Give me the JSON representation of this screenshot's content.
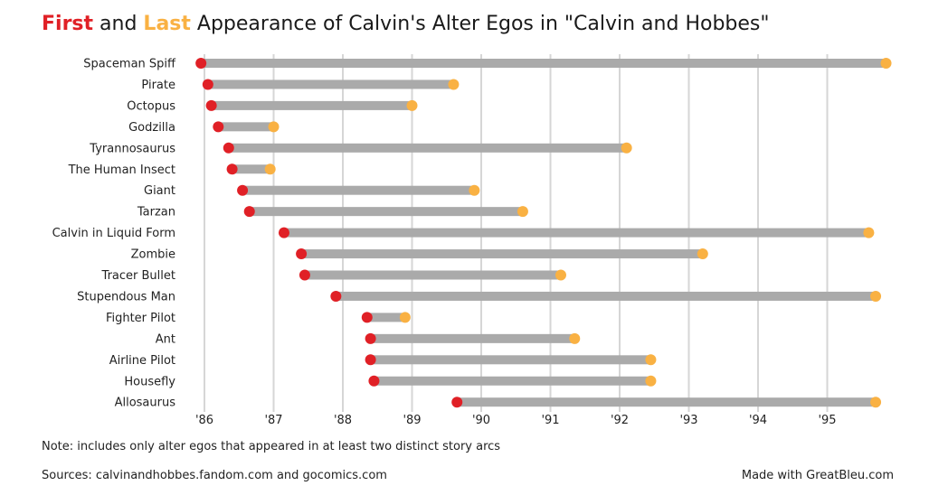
{
  "title": {
    "first_word": "First",
    "and_word": "and",
    "last_word": "Last",
    "rest": "Appearance of Calvin's Alter Egos in \"Calvin and Hobbes\""
  },
  "colors": {
    "first": "#e02026",
    "last": "#f9b143",
    "bar": "#aaaaaa",
    "grid": "#d6d6d6"
  },
  "chart_data": {
    "type": "range",
    "title": "First and Last Appearance of Calvin's Alter Egos in \"Calvin and Hobbes\"",
    "xlim": [
      1985.85,
      1995.85
    ],
    "grid": true,
    "x_ticks": [
      {
        "value": 1986,
        "label": "'86"
      },
      {
        "value": 1987,
        "label": "'87"
      },
      {
        "value": 1988,
        "label": "'88"
      },
      {
        "value": 1989,
        "label": "'89"
      },
      {
        "value": 1990,
        "label": "'90"
      },
      {
        "value": 1991,
        "label": "'91"
      },
      {
        "value": 1992,
        "label": "'92"
      },
      {
        "value": 1993,
        "label": "'93"
      },
      {
        "value": 1994,
        "label": "'94"
      },
      {
        "value": 1995,
        "label": "'95"
      }
    ],
    "series": [
      {
        "name": "First",
        "role": "first"
      },
      {
        "name": "Last",
        "role": "last"
      }
    ],
    "rows": [
      {
        "label": "Spaceman Spiff",
        "first": 1985.95,
        "last": 1995.85
      },
      {
        "label": "Pirate",
        "first": 1986.05,
        "last": 1989.6
      },
      {
        "label": "Octopus",
        "first": 1986.1,
        "last": 1989.0
      },
      {
        "label": "Godzilla",
        "first": 1986.2,
        "last": 1987.0
      },
      {
        "label": "Tyrannosaurus",
        "first": 1986.35,
        "last": 1992.1
      },
      {
        "label": "The Human Insect",
        "first": 1986.4,
        "last": 1986.95
      },
      {
        "label": "Giant",
        "first": 1986.55,
        "last": 1989.9
      },
      {
        "label": "Tarzan",
        "first": 1986.65,
        "last": 1990.6
      },
      {
        "label": "Calvin in Liquid Form",
        "first": 1987.15,
        "last": 1995.6
      },
      {
        "label": "Zombie",
        "first": 1987.4,
        "last": 1993.2
      },
      {
        "label": "Tracer Bullet",
        "first": 1987.45,
        "last": 1991.15
      },
      {
        "label": "Stupendous Man",
        "first": 1987.9,
        "last": 1995.7
      },
      {
        "label": "Fighter Pilot",
        "first": 1988.35,
        "last": 1988.9
      },
      {
        "label": "Ant",
        "first": 1988.4,
        "last": 1991.35
      },
      {
        "label": "Airline Pilot",
        "first": 1988.4,
        "last": 1992.45
      },
      {
        "label": "Housefly",
        "first": 1988.45,
        "last": 1992.45
      },
      {
        "label": "Allosaurus",
        "first": 1989.65,
        "last": 1995.7
      }
    ]
  },
  "note": "Note: includes only alter egos that appeared in at least two distinct story arcs",
  "sources": "Sources: calvinandhobbes.fandom.com and gocomics.com",
  "credit": "Made with GreatBleu.com"
}
